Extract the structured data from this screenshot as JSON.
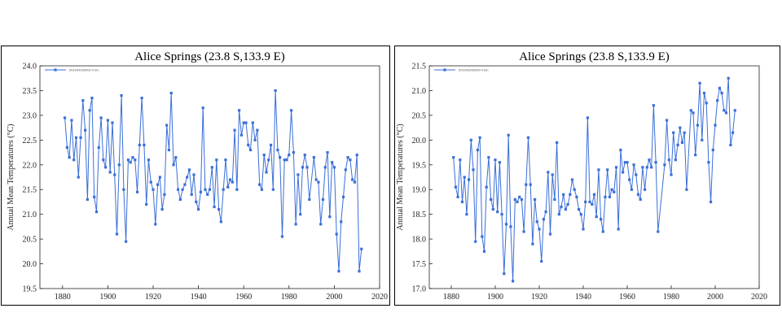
{
  "chart_data": [
    {
      "type": "line",
      "title": "Alice Springs (23.8 S,133.9 E)",
      "ylabel": "Annual Mean Temperatures (°C)",
      "xlabel": "",
      "xlim": [
        1870,
        2020
      ],
      "ylim": [
        19.5,
        24.0
      ],
      "xticks": [
        "1880",
        "1900",
        "1920",
        "1940",
        "1960",
        "1980",
        "2000",
        "2020"
      ],
      "yticks": [
        "19.5",
        "20.0",
        "20.5",
        "21.0",
        "21.5",
        "22.0",
        "22.5",
        "23.0",
        "23.5",
        "24.0"
      ],
      "legend": "top-left",
      "grid": false,
      "color": "#3a6fd8",
      "series": [
        {
          "name": "501943260000 0 km",
          "points": [
            [
              1881,
              22.95
            ],
            [
              1882,
              22.35
            ],
            [
              1883,
              22.15
            ],
            [
              1884,
              22.9
            ],
            [
              1885,
              22.1
            ],
            [
              1886,
              22.55
            ],
            [
              1887,
              21.75
            ],
            [
              1888,
              22.55
            ],
            [
              1889,
              23.3
            ],
            [
              1890,
              22.7
            ],
            [
              1891,
              21.3
            ],
            [
              1892,
              23.1
            ],
            [
              1893,
              23.35
            ],
            [
              1894,
              21.35
            ],
            [
              1895,
              21.05
            ],
            [
              1896,
              22.35
            ],
            [
              1897,
              22.95
            ],
            [
              1898,
              22.1
            ],
            [
              1899,
              21.95
            ],
            [
              1900,
              22.9
            ],
            [
              1901,
              21.85
            ],
            [
              1902,
              22.85
            ],
            [
              1903,
              21.8
            ],
            [
              1904,
              20.6
            ],
            [
              1905,
              22.0
            ],
            [
              1906,
              23.4
            ],
            [
              1907,
              21.5
            ],
            [
              1908,
              20.45
            ],
            [
              1909,
              22.1
            ],
            [
              1910,
              22.05
            ],
            [
              1911,
              22.15
            ],
            [
              1912,
              22.1
            ],
            [
              1913,
              21.45
            ],
            [
              1914,
              22.4
            ],
            [
              1915,
              23.35
            ],
            [
              1916,
              22.4
            ],
            [
              1917,
              21.2
            ],
            [
              1918,
              22.1
            ],
            [
              1919,
              21.65
            ],
            [
              1920,
              21.5
            ],
            [
              1921,
              20.8
            ],
            [
              1922,
              21.6
            ],
            [
              1923,
              21.75
            ],
            [
              1924,
              21.1
            ],
            [
              1925,
              21.4
            ],
            [
              1926,
              22.8
            ],
            [
              1927,
              22.3
            ],
            [
              1928,
              23.45
            ],
            [
              1929,
              22.0
            ],
            [
              1930,
              22.15
            ],
            [
              1931,
              21.5
            ],
            [
              1932,
              21.3
            ],
            [
              1933,
              21.5
            ],
            [
              1934,
              21.6
            ],
            [
              1935,
              21.75
            ],
            [
              1936,
              21.9
            ],
            [
              1937,
              21.4
            ],
            [
              1938,
              21.8
            ],
            [
              1939,
              21.25
            ],
            [
              1940,
              21.1
            ],
            [
              1941,
              21.45
            ],
            [
              1942,
              23.15
            ],
            [
              1943,
              21.5
            ],
            [
              1944,
              21.4
            ],
            [
              1945,
              21.5
            ],
            [
              1946,
              21.95
            ],
            [
              1947,
              21.15
            ],
            [
              1948,
              22.1
            ],
            [
              1949,
              21.1
            ],
            [
              1950,
              20.85
            ],
            [
              1951,
              21.5
            ],
            [
              1952,
              22.1
            ],
            [
              1953,
              21.55
            ],
            [
              1954,
              21.7
            ],
            [
              1955,
              21.65
            ],
            [
              1956,
              22.7
            ],
            [
              1957,
              21.5
            ],
            [
              1958,
              23.1
            ],
            [
              1959,
              22.6
            ],
            [
              1960,
              22.85
            ],
            [
              1961,
              22.85
            ],
            [
              1962,
              22.4
            ],
            [
              1963,
              22.3
            ],
            [
              1964,
              22.85
            ],
            [
              1965,
              22.5
            ],
            [
              1966,
              22.7
            ],
            [
              1967,
              21.6
            ],
            [
              1968,
              21.5
            ],
            [
              1969,
              22.2
            ],
            [
              1970,
              21.85
            ],
            [
              1971,
              22.1
            ],
            [
              1972,
              22.4
            ],
            [
              1973,
              21.5
            ],
            [
              1974,
              23.5
            ],
            [
              1975,
              22.3
            ],
            [
              1976,
              22.15
            ],
            [
              1977,
              20.55
            ],
            [
              1978,
              22.1
            ],
            [
              1979,
              22.1
            ],
            [
              1980,
              22.2
            ],
            [
              1981,
              23.1
            ],
            [
              1982,
              22.25
            ],
            [
              1983,
              20.8
            ],
            [
              1984,
              21.8
            ],
            [
              1985,
              21.0
            ],
            [
              1986,
              21.95
            ],
            [
              1987,
              22.2
            ],
            [
              1988,
              21.95
            ],
            [
              1989,
              21.3
            ],
            [
              1991,
              22.15
            ],
            [
              1992,
              21.7
            ],
            [
              1993,
              21.65
            ],
            [
              1994,
              20.8
            ],
            [
              1995,
              21.3
            ],
            [
              1996,
              21.95
            ],
            [
              1997,
              22.25
            ],
            [
              1998,
              20.95
            ],
            [
              1999,
              22.05
            ],
            [
              2000,
              21.95
            ],
            [
              2001,
              20.6
            ],
            [
              2002,
              19.85
            ],
            [
              2003,
              20.85
            ],
            [
              2004,
              21.35
            ],
            [
              2005,
              21.9
            ],
            [
              2006,
              22.15
            ],
            [
              2007,
              22.1
            ],
            [
              2008,
              21.7
            ],
            [
              2009,
              21.65
            ],
            [
              2010,
              22.2
            ],
            [
              2011,
              19.85
            ],
            [
              2012,
              20.3
            ]
          ]
        }
      ]
    },
    {
      "type": "line",
      "title": "Alice Springs (23.8 S,133.9 E)",
      "ylabel": "Annual Mean Temperatures (°C)",
      "xlabel": "",
      "xlim": [
        1870,
        2020
      ],
      "ylim": [
        17.0,
        21.5
      ],
      "xticks": [
        "1880",
        "1900",
        "1920",
        "1940",
        "1960",
        "1980",
        "2000",
        "2020"
      ],
      "yticks": [
        "17.0",
        "17.5",
        "18.0",
        "18.5",
        "19.0",
        "19.5",
        "20.0",
        "20.5",
        "21.0",
        "21.5"
      ],
      "legend": "top-left",
      "grid": false,
      "color": "#3a6fd8",
      "series": [
        {
          "name": "501943260000 0 km",
          "points": [
            [
              1881,
              19.65
            ],
            [
              1882,
              19.05
            ],
            [
              1883,
              18.85
            ],
            [
              1884,
              19.6
            ],
            [
              1885,
              18.75
            ],
            [
              1886,
              19.25
            ],
            [
              1887,
              18.5
            ],
            [
              1888,
              19.2
            ],
            [
              1889,
              20.0
            ],
            [
              1890,
              19.4
            ],
            [
              1891,
              17.95
            ],
            [
              1892,
              19.8
            ],
            [
              1893,
              20.05
            ],
            [
              1894,
              18.05
            ],
            [
              1895,
              17.75
            ],
            [
              1896,
              19.05
            ],
            [
              1897,
              19.65
            ],
            [
              1898,
              18.8
            ],
            [
              1899,
              18.6
            ],
            [
              1900,
              19.6
            ],
            [
              1901,
              18.55
            ],
            [
              1902,
              19.55
            ],
            [
              1903,
              18.5
            ],
            [
              1904,
              17.3
            ],
            [
              1905,
              18.3
            ],
            [
              1906,
              20.1
            ],
            [
              1907,
              18.25
            ],
            [
              1908,
              17.15
            ],
            [
              1909,
              18.8
            ],
            [
              1910,
              18.75
            ],
            [
              1911,
              18.85
            ],
            [
              1912,
              18.8
            ],
            [
              1913,
              18.15
            ],
            [
              1914,
              19.1
            ],
            [
              1915,
              20.05
            ],
            [
              1916,
              19.1
            ],
            [
              1917,
              17.9
            ],
            [
              1918,
              18.8
            ],
            [
              1919,
              18.35
            ],
            [
              1920,
              18.2
            ],
            [
              1921,
              17.55
            ],
            [
              1922,
              18.4
            ],
            [
              1923,
              18.55
            ],
            [
              1924,
              19.35
            ],
            [
              1925,
              18.1
            ],
            [
              1926,
              19.3
            ],
            [
              1927,
              18.8
            ],
            [
              1928,
              19.95
            ],
            [
              1929,
              18.5
            ],
            [
              1930,
              18.65
            ],
            [
              1931,
              18.9
            ],
            [
              1932,
              18.6
            ],
            [
              1933,
              18.7
            ],
            [
              1934,
              18.9
            ],
            [
              1935,
              19.2
            ],
            [
              1936,
              19.0
            ],
            [
              1937,
              18.85
            ],
            [
              1938,
              18.6
            ],
            [
              1939,
              18.5
            ],
            [
              1940,
              18.2
            ],
            [
              1941,
              18.75
            ],
            [
              1942,
              20.45
            ],
            [
              1943,
              18.75
            ],
            [
              1944,
              18.7
            ],
            [
              1945,
              18.9
            ],
            [
              1946,
              18.45
            ],
            [
              1947,
              19.4
            ],
            [
              1948,
              18.4
            ],
            [
              1949,
              18.15
            ],
            [
              1950,
              18.85
            ],
            [
              1951,
              19.4
            ],
            [
              1952,
              18.85
            ],
            [
              1953,
              19.0
            ],
            [
              1954,
              18.95
            ],
            [
              1955,
              19.45
            ],
            [
              1956,
              18.2
            ],
            [
              1957,
              19.8
            ],
            [
              1958,
              19.35
            ],
            [
              1959,
              19.55
            ],
            [
              1960,
              19.55
            ],
            [
              1961,
              19.2
            ],
            [
              1962,
              19.0
            ],
            [
              1963,
              19.5
            ],
            [
              1964,
              19.3
            ],
            [
              1965,
              18.9
            ],
            [
              1966,
              18.8
            ],
            [
              1967,
              19.45
            ],
            [
              1968,
              19.0
            ],
            [
              1969,
              19.45
            ],
            [
              1970,
              19.6
            ],
            [
              1971,
              19.45
            ],
            [
              1972,
              20.7
            ],
            [
              1973,
              19.55
            ],
            [
              1974,
              18.15
            ],
            [
              1977,
              19.5
            ],
            [
              1978,
              20.4
            ],
            [
              1979,
              19.6
            ],
            [
              1980,
              19.3
            ],
            [
              1981,
              20.15
            ],
            [
              1982,
              19.6
            ],
            [
              1983,
              19.9
            ],
            [
              1984,
              20.25
            ],
            [
              1985,
              19.95
            ],
            [
              1986,
              20.15
            ],
            [
              1987,
              19.0
            ],
            [
              1989,
              20.6
            ],
            [
              1990,
              20.55
            ],
            [
              1991,
              19.7
            ],
            [
              1992,
              20.3
            ],
            [
              1993,
              21.15
            ],
            [
              1994,
              20.0
            ],
            [
              1995,
              20.95
            ],
            [
              1996,
              20.75
            ],
            [
              1997,
              19.55
            ],
            [
              1998,
              18.75
            ],
            [
              1999,
              19.8
            ],
            [
              2000,
              20.3
            ],
            [
              2001,
              20.8
            ],
            [
              2002,
              21.05
            ],
            [
              2003,
              20.95
            ],
            [
              2004,
              20.6
            ],
            [
              2005,
              20.55
            ],
            [
              2006,
              21.25
            ],
            [
              2007,
              19.9
            ],
            [
              2008,
              20.15
            ],
            [
              2009,
              20.6
            ]
          ]
        }
      ]
    }
  ]
}
